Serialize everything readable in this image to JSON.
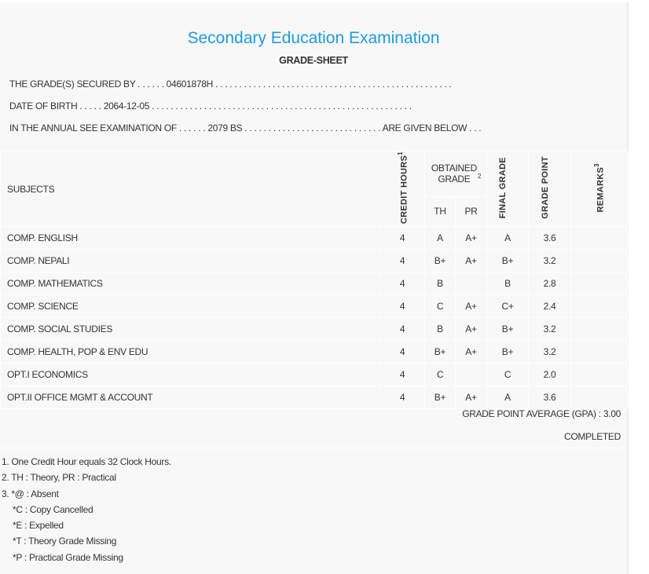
{
  "header": {
    "title": "Secondary Education Examination",
    "subtitle": "GRADE-SHEET",
    "secured_by": "THE GRADE(S) SECURED BY . . . . . . 04601878H . . . . . . . . . . . . . . . . . . . . . . . . . . . . . . . . . . . . . . . . . . . . . . . . . .",
    "dob": "DATE OF BIRTH . . . . . 2064-12-05 . . . . . . . . . . . . . . . . . . . . . . . . . . . . . . . . . . . . . . . . . . . . . . . . . . . . . . .",
    "exam": "IN THE ANNUAL SEE EXAMINATION OF . . . . . . 2079 BS . . . . . . . . . . . . . . . . . . . . . . . . . . . . . ARE GIVEN BELOW . . ."
  },
  "table": {
    "headers": {
      "subjects": "SUBJECTS",
      "credit_hours": "CREDIT HOURS",
      "credit_sup": "1",
      "obtained_grade": "OBTAINED GRADE",
      "obtained_sup": "2",
      "th": "TH",
      "pr": "PR",
      "final_grade": "FINAL GRADE",
      "grade_point": "GRADE POINT",
      "remarks": "REMARKS",
      "remarks_sup": "3"
    },
    "rows": [
      {
        "subject": "COMP. ENGLISH",
        "credit": "4",
        "th": "A",
        "pr": "A+",
        "final": "A",
        "gp": "3.6",
        "remarks": ""
      },
      {
        "subject": "COMP. NEPALI",
        "credit": "4",
        "th": "B+",
        "pr": "A+",
        "final": "B+",
        "gp": "3.2",
        "remarks": ""
      },
      {
        "subject": "COMP. MATHEMATICS",
        "credit": "4",
        "th": "B",
        "pr": "",
        "final": "B",
        "gp": "2.8",
        "remarks": ""
      },
      {
        "subject": "COMP. SCIENCE",
        "credit": "4",
        "th": "C",
        "pr": "A+",
        "final": "C+",
        "gp": "2.4",
        "remarks": ""
      },
      {
        "subject": "COMP. SOCIAL STUDIES",
        "credit": "4",
        "th": "B",
        "pr": "A+",
        "final": "B+",
        "gp": "3.2",
        "remarks": ""
      },
      {
        "subject": "COMP. HEALTH, POP & ENV EDU",
        "credit": "4",
        "th": "B+",
        "pr": "A+",
        "final": "B+",
        "gp": "3.2",
        "remarks": ""
      },
      {
        "subject": "OPT.I ECONOMICS",
        "credit": "4",
        "th": "C",
        "pr": "",
        "final": "C",
        "gp": "2.0",
        "remarks": ""
      },
      {
        "subject": "OPT.II OFFICE MGMT & ACCOUNT",
        "credit": "4",
        "th": "B+",
        "pr": "A+",
        "final": "A",
        "gp": "3.6",
        "remarks": ""
      }
    ]
  },
  "summary": {
    "gpa": "GRADE POINT AVERAGE (GPA) : 3.00",
    "status": "COMPLETED"
  },
  "notes": [
    "1. One Credit Hour equals 32 Clock Hours.",
    "2. TH : Theory, PR : Practical",
    "3. *@ : Absent",
    "*C : Copy Cancelled",
    "*E : Expelled",
    "*T : Theory Grade Missing",
    "*P : Practical Grade Missing"
  ],
  "colors": {
    "title": "#1f9be0",
    "text": "#333333",
    "background": "#f8f8f8"
  }
}
